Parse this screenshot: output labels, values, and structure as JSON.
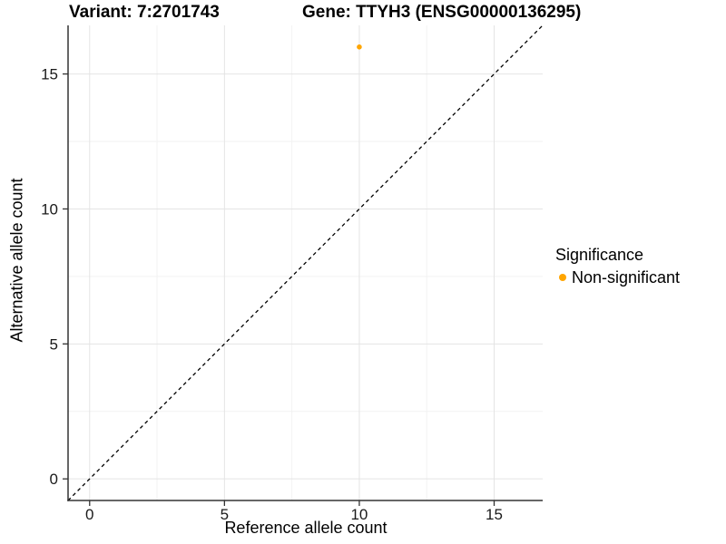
{
  "header": {
    "variant_title": "Variant: 7:2701743",
    "gene_title": "Gene: TTYH3 (ENSG00000136295)"
  },
  "chart_data": {
    "type": "scatter",
    "title_left": "Variant: 7:2701743",
    "title_right": "Gene: TTYH3 (ENSG00000136295)",
    "xlabel": "Reference allele count",
    "ylabel": "Alternative allele count",
    "xlim": [
      -0.8,
      16.8
    ],
    "ylim": [
      -0.8,
      16.8
    ],
    "x_major_ticks": [
      0,
      5,
      10,
      15
    ],
    "y_major_ticks": [
      0,
      5,
      10,
      15
    ],
    "x_minor_ticks": [
      2.5,
      7.5,
      12.5
    ],
    "y_minor_ticks": [
      2.5,
      7.5,
      12.5
    ],
    "grid": "major+minor",
    "points": [
      {
        "x": 10,
        "y": 16,
        "series": "Non-significant"
      }
    ],
    "identity_line": {
      "type": "y=x",
      "style": "dashed",
      "from": [
        -0.8,
        -0.8
      ],
      "to": [
        16.8,
        16.8
      ]
    },
    "legend": {
      "title": "Significance",
      "position": "right",
      "entries": [
        {
          "label": "Non-significant",
          "color": "#FFA500"
        }
      ]
    }
  },
  "colors": {
    "point": "#FFA500",
    "grid_major": "#E4E4E4",
    "grid_minor": "#F2F2F2",
    "axis_line": "#333333",
    "tick_mark": "#333333",
    "tick_text": "#1A1A1A",
    "identity_line": "#000000",
    "background": "#FFFFFF"
  }
}
